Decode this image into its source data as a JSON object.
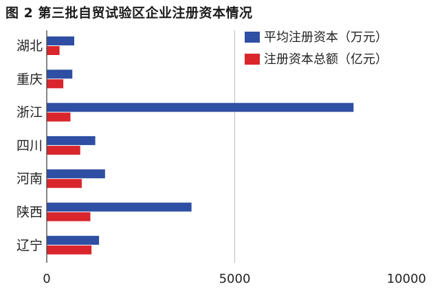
{
  "chart_data": {
    "type": "bar",
    "orientation": "horizontal",
    "title": "图 2 第三批自贸试验区企业注册资本情况",
    "categories": [
      "湖北",
      "重庆",
      "浙江",
      "四川",
      "河南",
      "陕西",
      "辽宁"
    ],
    "series": [
      {
        "name": "平均注册资本（万元）",
        "color": "#2e4fa3",
        "values": [
          720,
          670,
          8150,
          1280,
          1540,
          3840,
          1380
        ]
      },
      {
        "name": "注册资本总额（亿元）",
        "color": "#d9262c",
        "values": [
          330,
          430,
          620,
          880,
          920,
          1150,
          1180
        ]
      }
    ],
    "xlim": [
      0,
      10000
    ],
    "xticks": [
      "0",
      "5000",
      "10000"
    ],
    "grid": "vertical-at-5000",
    "legend_position": "top-right"
  }
}
